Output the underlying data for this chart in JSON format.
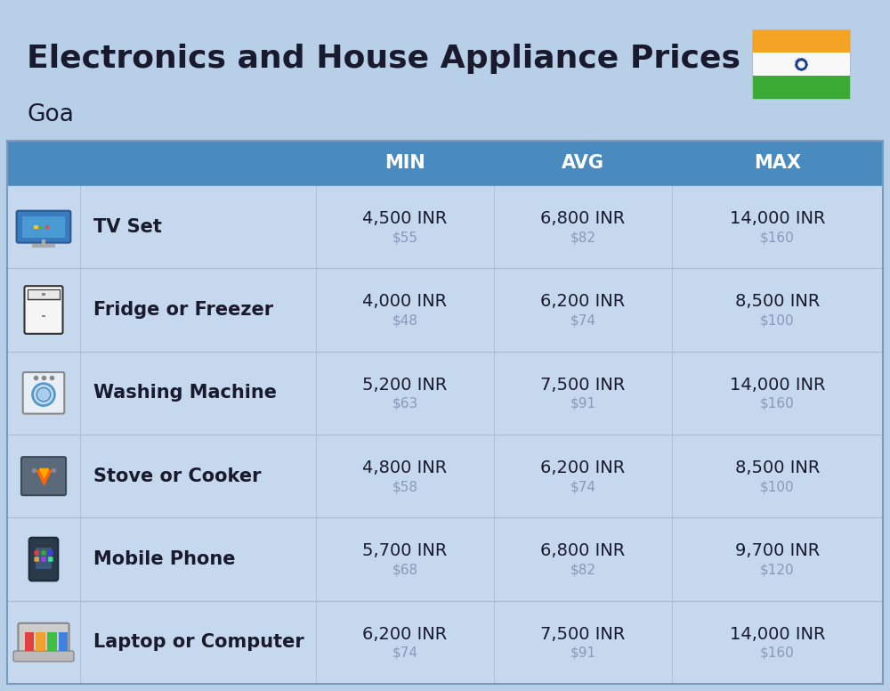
{
  "title": "Electronics and House Appliance Prices",
  "subtitle": "Goa",
  "background_color": "#b8cfe8",
  "header_color": "#4a8bbf",
  "header_text_color": "#ffffff",
  "row_bg": "#c5d8ed",
  "divider_color": "#a8bdd4",
  "col_labels": [
    "MIN",
    "AVG",
    "MAX"
  ],
  "items": [
    {
      "name": "TV Set",
      "min_inr": "4,500 INR",
      "min_usd": "$55",
      "avg_inr": "6,800 INR",
      "avg_usd": "$82",
      "max_inr": "14,000 INR",
      "max_usd": "$160"
    },
    {
      "name": "Fridge or Freezer",
      "min_inr": "4,000 INR",
      "min_usd": "$48",
      "avg_inr": "6,200 INR",
      "avg_usd": "$74",
      "max_inr": "8,500 INR",
      "max_usd": "$100"
    },
    {
      "name": "Washing Machine",
      "min_inr": "5,200 INR",
      "min_usd": "$63",
      "avg_inr": "7,500 INR",
      "avg_usd": "$91",
      "max_inr": "14,000 INR",
      "max_usd": "$160"
    },
    {
      "name": "Stove or Cooker",
      "min_inr": "4,800 INR",
      "min_usd": "$58",
      "avg_inr": "6,200 INR",
      "avg_usd": "$74",
      "max_inr": "8,500 INR",
      "max_usd": "$100"
    },
    {
      "name": "Mobile Phone",
      "min_inr": "5,700 INR",
      "min_usd": "$68",
      "avg_inr": "6,800 INR",
      "avg_usd": "$82",
      "max_inr": "9,700 INR",
      "max_usd": "$120"
    },
    {
      "name": "Laptop or Computer",
      "min_inr": "6,200 INR",
      "min_usd": "$74",
      "avg_inr": "7,500 INR",
      "avg_usd": "$91",
      "max_inr": "14,000 INR",
      "max_usd": "$160"
    }
  ],
  "title_fontsize": 26,
  "subtitle_fontsize": 19,
  "header_fontsize": 15,
  "item_name_fontsize": 15,
  "value_fontsize": 14,
  "usd_fontsize": 11,
  "usd_color": "#8899bb",
  "text_color": "#1a1a2e",
  "flag_orange": "#f4a324",
  "flag_white": "#f8f8f8",
  "flag_green": "#3aaa35",
  "flag_chakra": "#1a3a8a"
}
